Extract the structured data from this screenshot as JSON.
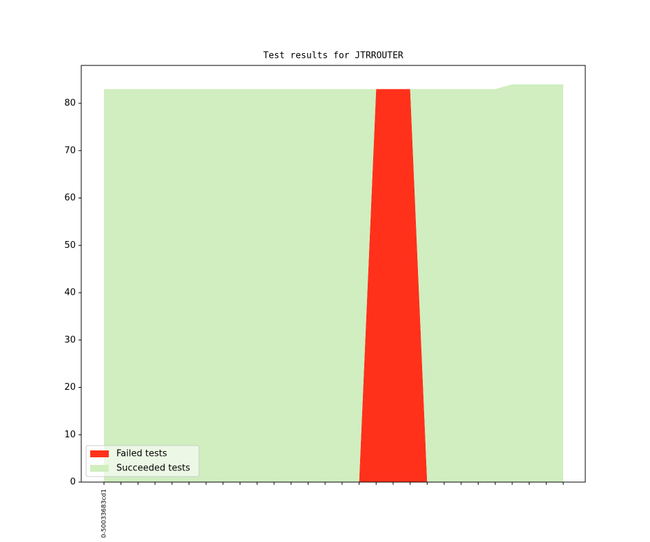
{
  "chart_data": {
    "type": "stacked-area",
    "title": "Test results for JTRROUTER",
    "categories": [
      "0-50033683cd1",
      null,
      null,
      null,
      null,
      null,
      null,
      null,
      null,
      null,
      null,
      null,
      null,
      null,
      null,
      null,
      null,
      null,
      null,
      null,
      null,
      null,
      null,
      null,
      null,
      null,
      null,
      null
    ],
    "series": [
      {
        "name": "Failed tests",
        "color": "#ff311b",
        "values": [
          0,
          0,
          0,
          0,
          0,
          0,
          0,
          0,
          0,
          0,
          0,
          0,
          0,
          0,
          0,
          0,
          83,
          83,
          83,
          0,
          0,
          0,
          0,
          0,
          0,
          0,
          0,
          0
        ]
      },
      {
        "name": "Succeeded tests",
        "color": "#d0eebf",
        "values": [
          83,
          83,
          83,
          83,
          83,
          83,
          83,
          83,
          83,
          83,
          83,
          83,
          83,
          83,
          83,
          83,
          0,
          0,
          0,
          83,
          83,
          83,
          83,
          83,
          84,
          84,
          84,
          84
        ]
      }
    ],
    "ylim": [
      0,
      88
    ],
    "yticks": [
      0,
      10,
      20,
      30,
      40,
      50,
      60,
      70,
      80
    ],
    "legend": "lower left"
  }
}
